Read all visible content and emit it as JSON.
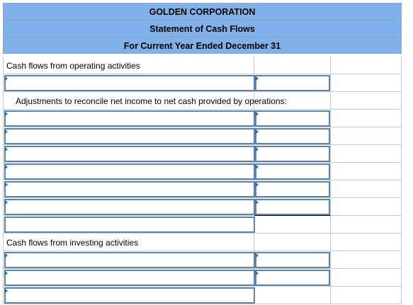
{
  "header": {
    "company": "GOLDEN CORPORATION",
    "statement": "Statement of Cash Flows",
    "period": "For Current Year Ended December 31"
  },
  "sections": {
    "operating_label": "Cash flows from operating activities",
    "adjustments_label": "Adjustments to reconcile net income to net cash provided by operations:",
    "investing_label": "Cash flows from investing activities"
  },
  "inputs": {
    "operating_entry": "",
    "operating_amount": "",
    "adjustments": [
      "",
      "",
      "",
      "",
      "",
      ""
    ],
    "adjustments_amounts": [
      "",
      "",
      "",
      "",
      "",
      ""
    ],
    "adjustments_subtotal": "",
    "investing": [
      "",
      "",
      ""
    ],
    "investing_amounts": [
      "",
      ""
    ]
  },
  "colors": {
    "header_fill": "#7fb2ea",
    "input_border": "#5b84b1",
    "marker": "#3a6fb0"
  }
}
